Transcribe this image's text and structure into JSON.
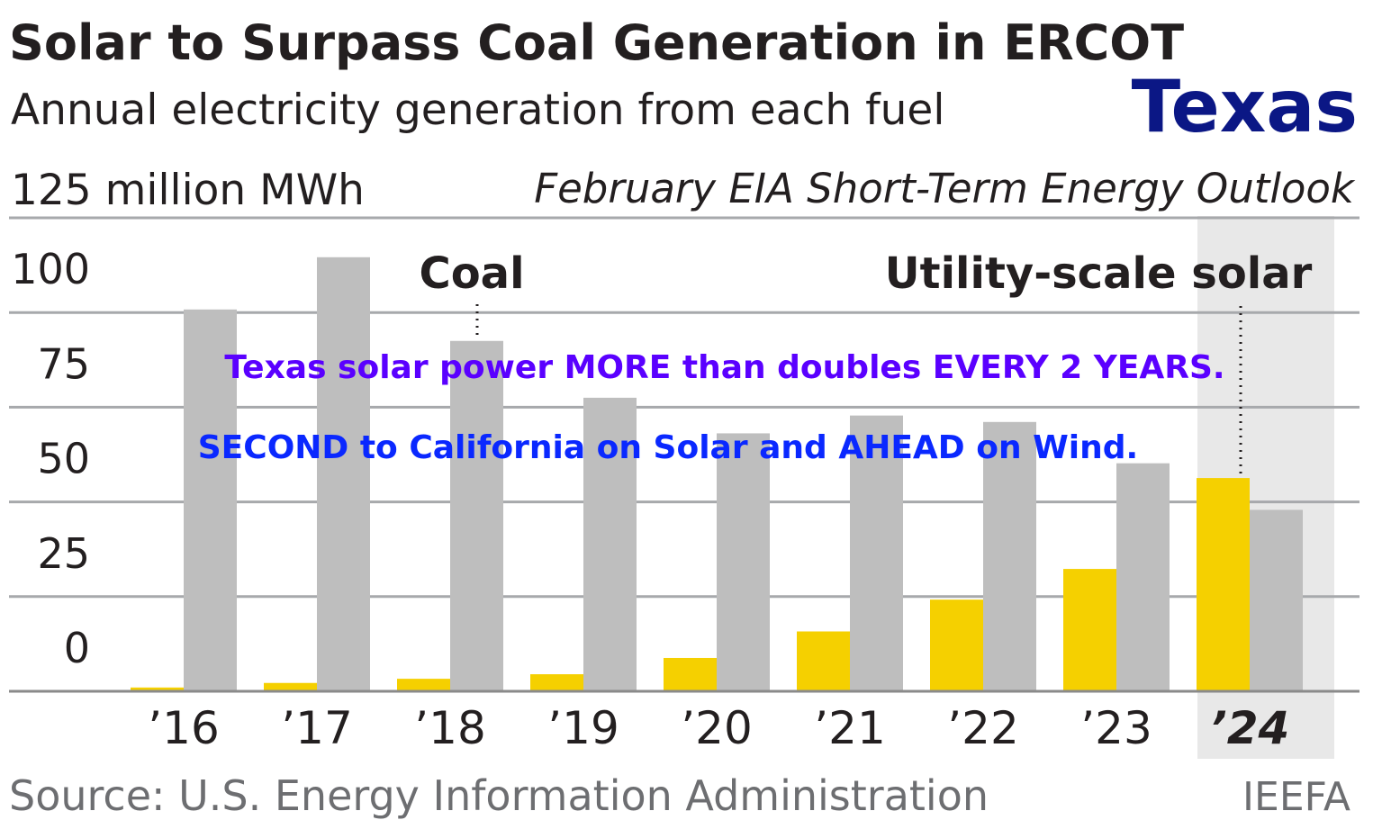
{
  "title": "Solar to Surpass Coal Generation in ERCOT",
  "subtitle": "Annual electricity generation from each fuel",
  "overlay": {
    "state": "Texas",
    "line1": "Texas solar power MORE than doubles EVERY 2 YEARS.",
    "line2": "SECOND to California on Solar and AHEAD on Wind."
  },
  "source": "Source: U.S. Energy Information Administration",
  "credit": "IEEFA",
  "colors": {
    "solar": "#f5d000",
    "coal": "#bebebe",
    "highlight": "#e8e8e8",
    "overlay1": "#5a00ff",
    "overlay2": "#0a28ff",
    "state": "#0b1785"
  },
  "chart_data": {
    "type": "bar",
    "ylabel": "125 million MWh",
    "note": "February EIA Short-Term Energy Outlook",
    "categories": [
      "’16",
      "’17",
      "’18",
      "’19",
      "’20",
      "’21",
      "’22",
      "’23",
      "’24"
    ],
    "highlight_category": "’24",
    "yticks": [
      0,
      25,
      50,
      75,
      100,
      125
    ],
    "ylim": [
      0,
      125
    ],
    "series": [
      {
        "name": "Utility-scale solar",
        "values": [
          1,
          2.2,
          3.3,
          4.5,
          8.8,
          15.8,
          24.2,
          32.3,
          56.3
        ]
      },
      {
        "name": "Coal",
        "values": [
          100.8,
          114.6,
          92.5,
          77.5,
          68.1,
          72.8,
          71.1,
          60.2,
          47.9
        ]
      }
    ]
  }
}
